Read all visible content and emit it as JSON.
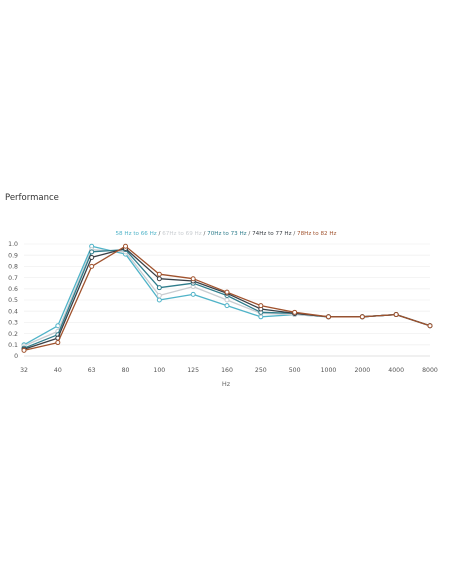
{
  "title": "Performance",
  "legend_separator": " / ",
  "chart_data": {
    "type": "line",
    "title": "Performance",
    "xlabel": "Hz",
    "ylabel": "",
    "ylim": [
      0,
      1.0
    ],
    "yticks": [
      "1.0",
      "0.9",
      "0.8",
      "0.7",
      "0.6",
      "0.5",
      "0.4",
      "0.3",
      "0.2",
      "0.1",
      "0"
    ],
    "categories": [
      "32",
      "40",
      "63",
      "80",
      "100",
      "125",
      "160",
      "250",
      "500",
      "1000",
      "2000",
      "4000",
      "8000"
    ],
    "grid": true,
    "legend_position": "top-center",
    "series": [
      {
        "name": "58 Hz to 66 Hz",
        "color": "#4fb3c8",
        "values": [
          0.1,
          0.27,
          0.98,
          0.91,
          0.5,
          0.55,
          0.45,
          0.35,
          0.37,
          0.35,
          0.35,
          0.37,
          0.27
        ]
      },
      {
        "name": "67Hz to 69 Hz",
        "color": "#c9cdd1",
        "values": [
          0.09,
          0.22,
          0.95,
          0.93,
          0.54,
          0.62,
          0.5,
          0.38,
          0.37,
          0.35,
          0.35,
          0.37,
          0.27
        ]
      },
      {
        "name": "70Hz to 73 Hz",
        "color": "#2f7d8c",
        "values": [
          0.07,
          0.19,
          0.93,
          0.95,
          0.61,
          0.65,
          0.54,
          0.39,
          0.38,
          0.35,
          0.35,
          0.37,
          0.27
        ]
      },
      {
        "name": "74Hz to 77 Hz",
        "color": "#3a3f45",
        "values": [
          0.06,
          0.16,
          0.88,
          0.96,
          0.69,
          0.67,
          0.56,
          0.42,
          0.38,
          0.35,
          0.35,
          0.37,
          0.27
        ]
      },
      {
        "name": "78Hz to 82 Hz",
        "color": "#a0522d",
        "values": [
          0.05,
          0.12,
          0.8,
          0.98,
          0.73,
          0.69,
          0.57,
          0.45,
          0.39,
          0.35,
          0.35,
          0.37,
          0.27
        ]
      }
    ]
  }
}
